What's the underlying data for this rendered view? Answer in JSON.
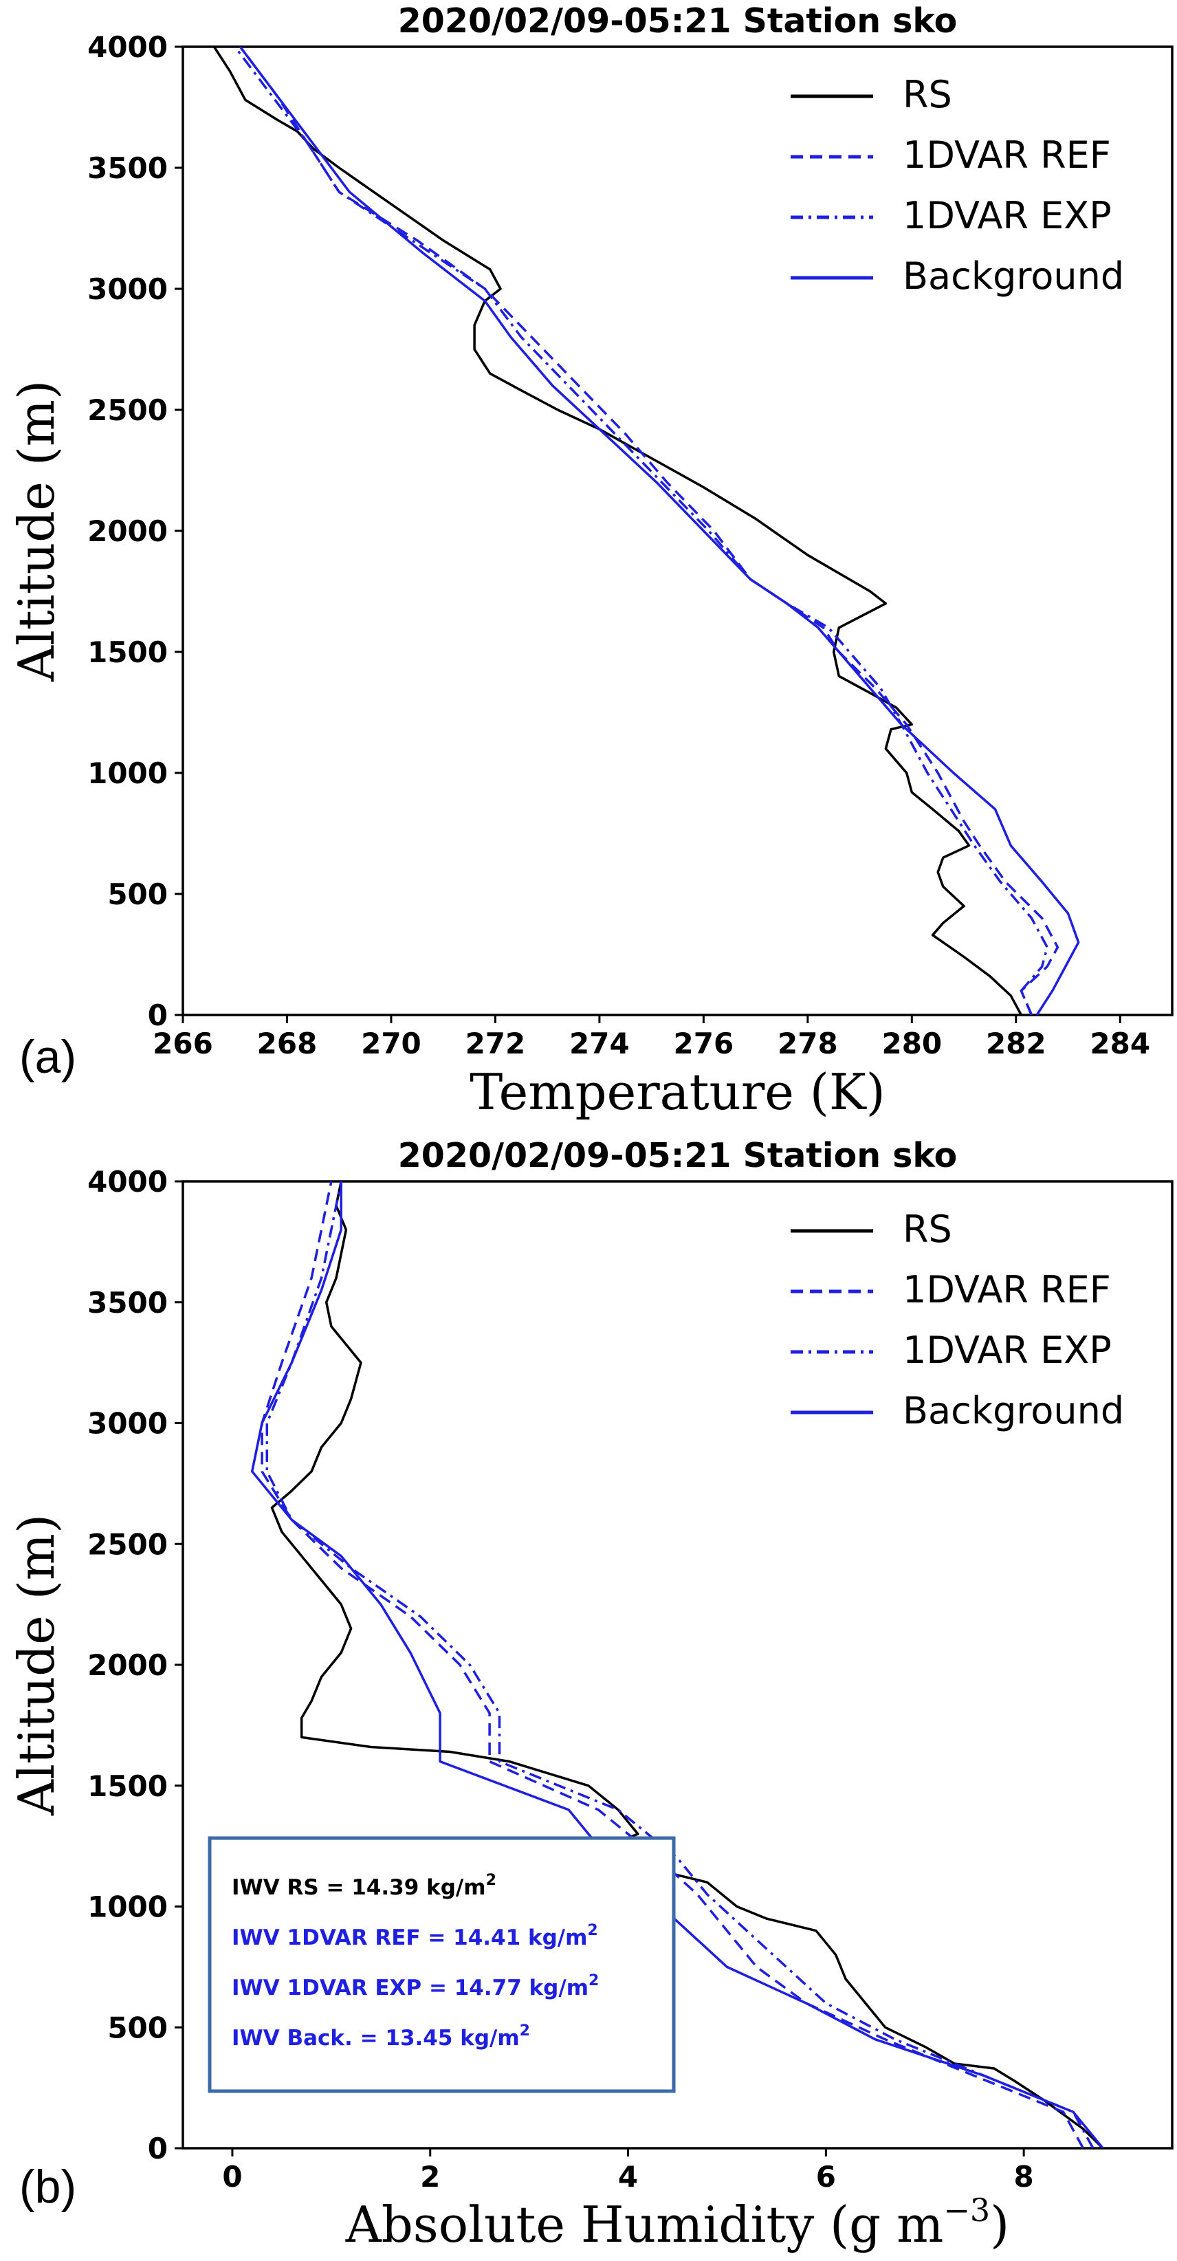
{
  "chart_data": [
    {
      "type": "line",
      "panel_label": "(a)",
      "title": "2020/02/09-05:21 Station sko",
      "xlabel": "Temperature (K)",
      "ylabel": "Altitude (m)",
      "xlim": [
        266,
        285
      ],
      "ylim": [
        0,
        4000
      ],
      "xticks": [
        "266",
        "268",
        "270",
        "272",
        "274",
        "276",
        "278",
        "280",
        "282",
        "284"
      ],
      "yticks": [
        "0",
        "500",
        "1000",
        "1500",
        "2000",
        "2500",
        "3000",
        "3500",
        "4000"
      ],
      "grid": false,
      "legend_position": "top-right",
      "series": [
        {
          "name": "RS",
          "color": "#000000",
          "style": "solid",
          "points": [
            [
              282.1,
              0
            ],
            [
              281.9,
              80
            ],
            [
              281.5,
              160
            ],
            [
              281.0,
              240
            ],
            [
              280.4,
              330
            ],
            [
              280.6,
              380
            ],
            [
              281.0,
              450
            ],
            [
              280.6,
              530
            ],
            [
              280.5,
              590
            ],
            [
              280.6,
              650
            ],
            [
              281.1,
              700
            ],
            [
              280.9,
              760
            ],
            [
              280.4,
              850
            ],
            [
              280.0,
              920
            ],
            [
              279.9,
              1000
            ],
            [
              279.5,
              1100
            ],
            [
              279.6,
              1180
            ],
            [
              280.0,
              1200
            ],
            [
              279.7,
              1270
            ],
            [
              279.2,
              1330
            ],
            [
              278.6,
              1400
            ],
            [
              278.5,
              1500
            ],
            [
              278.6,
              1600
            ],
            [
              279.5,
              1700
            ],
            [
              279.2,
              1750
            ],
            [
              278.0,
              1900
            ],
            [
              277.0,
              2050
            ],
            [
              276.0,
              2180
            ],
            [
              275.0,
              2300
            ],
            [
              274.0,
              2420
            ],
            [
              273.2,
              2500
            ],
            [
              272.5,
              2580
            ],
            [
              271.9,
              2650
            ],
            [
              271.6,
              2750
            ],
            [
              271.6,
              2850
            ],
            [
              271.8,
              2950
            ],
            [
              272.1,
              3000
            ],
            [
              271.9,
              3080
            ],
            [
              271.0,
              3200
            ],
            [
              270.0,
              3350
            ],
            [
              269.0,
              3500
            ],
            [
              268.5,
              3580
            ],
            [
              268.2,
              3650
            ],
            [
              267.8,
              3700
            ],
            [
              267.2,
              3780
            ],
            [
              266.9,
              3900
            ],
            [
              266.6,
              4000
            ]
          ]
        },
        {
          "name": "1DVAR REF",
          "color": "#1f1fe0",
          "style": "dashed",
          "points": [
            [
              282.3,
              0
            ],
            [
              282.1,
              100
            ],
            [
              282.6,
              200
            ],
            [
              282.8,
              280
            ],
            [
              282.5,
              400
            ],
            [
              281.8,
              550
            ],
            [
              281.3,
              700
            ],
            [
              281.0,
              800
            ],
            [
              280.5,
              1000
            ],
            [
              279.9,
              1200
            ],
            [
              279.3,
              1350
            ],
            [
              278.6,
              1500
            ],
            [
              278.3,
              1600
            ],
            [
              277.6,
              1700
            ],
            [
              276.9,
              1800
            ],
            [
              276.2,
              2000
            ],
            [
              275.3,
              2200
            ],
            [
              274.5,
              2400
            ],
            [
              273.6,
              2600
            ],
            [
              272.7,
              2800
            ],
            [
              271.8,
              3000
            ],
            [
              270.5,
              3200
            ],
            [
              269.0,
              3400
            ],
            [
              268.4,
              3600
            ],
            [
              267.8,
              3800
            ],
            [
              267.1,
              4000
            ]
          ]
        },
        {
          "name": "1DVAR EXP",
          "color": "#1f1fe0",
          "style": "dashdot",
          "points": [
            [
              282.3,
              0
            ],
            [
              282.1,
              100
            ],
            [
              282.5,
              200
            ],
            [
              282.6,
              280
            ],
            [
              282.3,
              400
            ],
            [
              281.7,
              550
            ],
            [
              281.2,
              700
            ],
            [
              280.9,
              800
            ],
            [
              280.3,
              1000
            ],
            [
              279.8,
              1200
            ],
            [
              279.4,
              1350
            ],
            [
              278.8,
              1500
            ],
            [
              278.4,
              1600
            ],
            [
              277.6,
              1700
            ],
            [
              276.9,
              1800
            ],
            [
              276.1,
              2000
            ],
            [
              275.2,
              2200
            ],
            [
              274.3,
              2400
            ],
            [
              273.4,
              2600
            ],
            [
              272.5,
              2800
            ],
            [
              271.8,
              3000
            ],
            [
              270.4,
              3200
            ],
            [
              269.0,
              3400
            ],
            [
              268.4,
              3600
            ],
            [
              267.7,
              3800
            ],
            [
              267.0,
              4000
            ]
          ]
        },
        {
          "name": "Background",
          "color": "#1f1fe0",
          "style": "solid",
          "points": [
            [
              282.4,
              0
            ],
            [
              282.7,
              100
            ],
            [
              283.2,
              300
            ],
            [
              283.0,
              420
            ],
            [
              282.5,
              550
            ],
            [
              281.9,
              700
            ],
            [
              281.6,
              850
            ],
            [
              280.8,
              1000
            ],
            [
              279.8,
              1200
            ],
            [
              279.2,
              1350
            ],
            [
              278.6,
              1500
            ],
            [
              278.2,
              1600
            ],
            [
              277.6,
              1700
            ],
            [
              276.9,
              1800
            ],
            [
              276.0,
              2000
            ],
            [
              275.1,
              2200
            ],
            [
              274.1,
              2400
            ],
            [
              273.1,
              2600
            ],
            [
              272.3,
              2800
            ],
            [
              271.8,
              2950
            ],
            [
              270.6,
              3150
            ],
            [
              269.2,
              3400
            ],
            [
              268.5,
              3600
            ],
            [
              267.8,
              3800
            ],
            [
              267.1,
              4000
            ]
          ]
        }
      ]
    },
    {
      "type": "line",
      "panel_label": "(b)",
      "title": "2020/02/09-05:21 Station sko",
      "xlabel": "Absolute Humidity",
      "xlabel_unit": "(g m",
      "xlabel_exp": "−3",
      "xlabel_close": ")",
      "ylabel": "Altitude (m)",
      "xlim": [
        -0.5,
        9.5
      ],
      "ylim": [
        0,
        4000
      ],
      "xticks": [
        "0",
        "2",
        "4",
        "6",
        "8"
      ],
      "yticks": [
        "0",
        "500",
        "1000",
        "1500",
        "2000",
        "2500",
        "3000",
        "3500",
        "4000"
      ],
      "grid": false,
      "legend_position": "top-right",
      "annotations": [
        {
          "text": "IWV RS = 14.39 kg/m",
          "sup": "2",
          "color": "#000000"
        },
        {
          "text": "IWV 1DVAR REF = 14.41 kg/m",
          "sup": "2",
          "color": "#1f1fe0"
        },
        {
          "text": "IWV 1DVAR EXP = 14.77 kg/m",
          "sup": "2",
          "color": "#1f1fe0"
        },
        {
          "text": "IWV Back. = 13.45 kg/m",
          "sup": "2",
          "color": "#1f1fe0"
        }
      ],
      "series": [
        {
          "name": "RS",
          "color": "#000000",
          "style": "solid",
          "points": [
            [
              8.8,
              0
            ],
            [
              8.6,
              80
            ],
            [
              8.2,
              200
            ],
            [
              7.9,
              280
            ],
            [
              7.7,
              330
            ],
            [
              7.3,
              350
            ],
            [
              7.0,
              420
            ],
            [
              6.6,
              500
            ],
            [
              6.4,
              600
            ],
            [
              6.2,
              700
            ],
            [
              6.1,
              800
            ],
            [
              5.9,
              900
            ],
            [
              5.4,
              950
            ],
            [
              5.1,
              1000
            ],
            [
              4.8,
              1100
            ],
            [
              4.3,
              1150
            ],
            [
              4.0,
              1200
            ],
            [
              3.9,
              1270
            ],
            [
              4.1,
              1300
            ],
            [
              3.9,
              1400
            ],
            [
              3.6,
              1500
            ],
            [
              3.2,
              1550
            ],
            [
              2.8,
              1600
            ],
            [
              2.2,
              1640
            ],
            [
              1.4,
              1660
            ],
            [
              0.7,
              1700
            ],
            [
              0.7,
              1780
            ],
            [
              0.8,
              1850
            ],
            [
              0.9,
              1950
            ],
            [
              1.1,
              2050
            ],
            [
              1.2,
              2150
            ],
            [
              1.1,
              2250
            ],
            [
              0.9,
              2350
            ],
            [
              0.7,
              2450
            ],
            [
              0.5,
              2550
            ],
            [
              0.4,
              2650
            ],
            [
              0.6,
              2720
            ],
            [
              0.8,
              2800
            ],
            [
              0.9,
              2900
            ],
            [
              1.1,
              3000
            ],
            [
              1.2,
              3100
            ],
            [
              1.3,
              3250
            ],
            [
              1.0,
              3400
            ],
            [
              0.95,
              3500
            ],
            [
              1.05,
              3600
            ],
            [
              1.1,
              3700
            ],
            [
              1.15,
              3800
            ],
            [
              1.05,
              3900
            ],
            [
              1.1,
              4000
            ]
          ]
        },
        {
          "name": "1DVAR REF",
          "color": "#1f1fe0",
          "style": "dashed",
          "points": [
            [
              8.6,
              0
            ],
            [
              8.4,
              150
            ],
            [
              7.5,
              300
            ],
            [
              6.6,
              450
            ],
            [
              5.8,
              600
            ],
            [
              5.3,
              750
            ],
            [
              5.0,
              900
            ],
            [
              4.7,
              1050
            ],
            [
              4.3,
              1200
            ],
            [
              3.7,
              1400
            ],
            [
              2.6,
              1600
            ],
            [
              2.6,
              1800
            ],
            [
              2.3,
              2000
            ],
            [
              1.8,
              2200
            ],
            [
              1.1,
              2400
            ],
            [
              0.6,
              2600
            ],
            [
              0.3,
              2800
            ],
            [
              0.3,
              3000
            ],
            [
              0.5,
              3250
            ],
            [
              0.8,
              3600
            ],
            [
              1.0,
              4000
            ]
          ]
        },
        {
          "name": "1DVAR EXP",
          "color": "#1f1fe0",
          "style": "dashdot",
          "points": [
            [
              8.7,
              0
            ],
            [
              8.5,
              150
            ],
            [
              7.6,
              300
            ],
            [
              6.7,
              450
            ],
            [
              6.0,
              600
            ],
            [
              5.6,
              750
            ],
            [
              5.2,
              900
            ],
            [
              4.8,
              1050
            ],
            [
              4.5,
              1200
            ],
            [
              3.9,
              1400
            ],
            [
              2.7,
              1600
            ],
            [
              2.7,
              1800
            ],
            [
              2.4,
              2000
            ],
            [
              1.9,
              2200
            ],
            [
              1.2,
              2400
            ],
            [
              0.6,
              2600
            ],
            [
              0.35,
              2800
            ],
            [
              0.35,
              3000
            ],
            [
              0.6,
              3250
            ],
            [
              0.9,
              3600
            ],
            [
              1.1,
              4000
            ]
          ]
        },
        {
          "name": "Background",
          "color": "#1f1fe0",
          "style": "solid",
          "points": [
            [
              8.8,
              0
            ],
            [
              8.5,
              150
            ],
            [
              7.6,
              300
            ],
            [
              6.5,
              450
            ],
            [
              5.8,
              600
            ],
            [
              5.0,
              750
            ],
            [
              4.6,
              900
            ],
            [
              4.2,
              1050
            ],
            [
              3.8,
              1200
            ],
            [
              3.4,
              1400
            ],
            [
              2.1,
              1600
            ],
            [
              2.1,
              1800
            ],
            [
              1.8,
              2050
            ],
            [
              1.5,
              2250
            ],
            [
              1.1,
              2450
            ],
            [
              0.6,
              2600
            ],
            [
              0.2,
              2800
            ],
            [
              0.3,
              3000
            ],
            [
              0.6,
              3250
            ],
            [
              0.9,
              3550
            ],
            [
              1.1,
              3800
            ],
            [
              1.1,
              4000
            ]
          ]
        }
      ]
    }
  ]
}
